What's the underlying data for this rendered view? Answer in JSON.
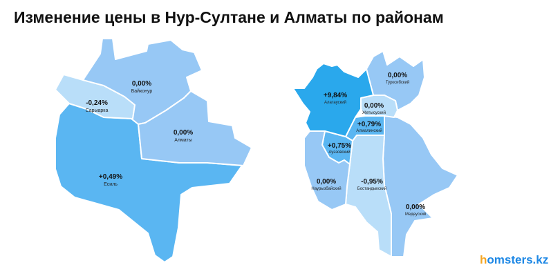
{
  "title": "Изменение цены в Нур-Султане и Алматы по районам",
  "colors": {
    "highest": "#2aa8ec",
    "positive": "#5ab6f2",
    "zero": "#97c8f5",
    "negative": "#b9def9",
    "border": "#ffffff"
  },
  "nursultan": {
    "districts": [
      {
        "name": "Байконур",
        "change": "0,00%",
        "value": 0.0
      },
      {
        "name": "Сарыарка",
        "change": "-0,24%",
        "value": -0.24
      },
      {
        "name": "Алматы",
        "change": "0,00%",
        "value": 0.0
      },
      {
        "name": "Есиль",
        "change": "+0,49%",
        "value": 0.49
      }
    ]
  },
  "almaty": {
    "districts": [
      {
        "name": "Алатауский",
        "change": "+9,84%",
        "value": 9.84
      },
      {
        "name": "Турксибский",
        "change": "0,00%",
        "value": 0.0
      },
      {
        "name": "Жетысуский",
        "change": "0,00%",
        "value": 0.0
      },
      {
        "name": "Алмалинский",
        "change": "+0,79%",
        "value": 0.79
      },
      {
        "name": "Ауэзовский",
        "change": "+0,75%",
        "value": 0.75
      },
      {
        "name": "Наурызбайский",
        "change": "0,00%",
        "value": 0.0
      },
      {
        "name": "Бостандыкский",
        "change": "-0,95%",
        "value": -0.95
      },
      {
        "name": "Медеуский",
        "change": "0,00%",
        "value": 0.0
      }
    ]
  },
  "logo": {
    "h": "h",
    "rest": "omsters.kz"
  }
}
